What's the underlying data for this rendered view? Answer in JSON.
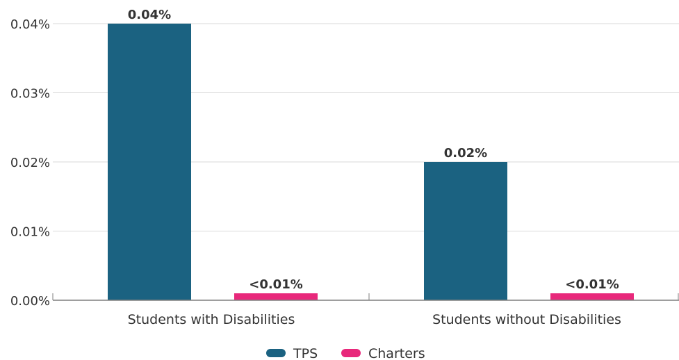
{
  "chart_data": {
    "type": "bar",
    "categories": [
      "Students with Disabilities",
      "Students without Disabilities"
    ],
    "series": [
      {
        "name": "TPS",
        "values": [
          0.04,
          0.02
        ],
        "labels": [
          "0.04%",
          "0.02%"
        ],
        "color": "#1b6281"
      },
      {
        "name": "Charters",
        "values": [
          0.001,
          0.001
        ],
        "labels": [
          "<0.01%",
          "<0.01%"
        ],
        "color": "#e8287b"
      }
    ],
    "yticks": [
      0.0,
      0.01,
      0.02,
      0.03,
      0.04
    ],
    "ytick_labels": [
      "0.00%",
      "0.01%",
      "0.02%",
      "0.03%",
      "0.04%"
    ],
    "ylim": [
      0,
      0.04
    ],
    "grid": true,
    "legend_position": "bottom-center"
  }
}
